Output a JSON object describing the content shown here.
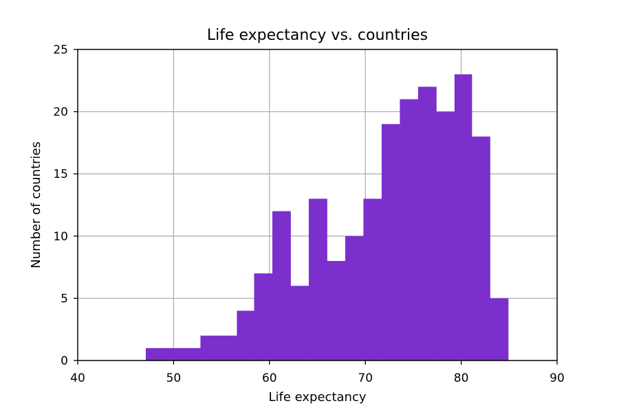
{
  "chart_data": {
    "type": "bar",
    "title": "Life expectancy vs. countries",
    "xlabel": "Life expectancy",
    "ylabel": "Number of countries",
    "xlim": [
      40,
      90
    ],
    "ylim": [
      0,
      25
    ],
    "xticks": [
      40,
      50,
      60,
      70,
      80,
      90
    ],
    "yticks": [
      0,
      5,
      10,
      15,
      20,
      25
    ],
    "grid": true,
    "bar_color": "#7b2fcc",
    "grid_color": "#b0b0b0",
    "bins": [
      {
        "x0": 47.1,
        "x1": 49.0,
        "value": 1
      },
      {
        "x0": 49.0,
        "x1": 50.9,
        "value": 1
      },
      {
        "x0": 50.9,
        "x1": 52.8,
        "value": 1
      },
      {
        "x0": 52.8,
        "x1": 54.7,
        "value": 2
      },
      {
        "x0": 54.7,
        "x1": 56.6,
        "value": 2
      },
      {
        "x0": 56.6,
        "x1": 58.4,
        "value": 4
      },
      {
        "x0": 58.4,
        "x1": 60.3,
        "value": 7
      },
      {
        "x0": 60.3,
        "x1": 62.2,
        "value": 12
      },
      {
        "x0": 62.2,
        "x1": 64.1,
        "value": 6
      },
      {
        "x0": 64.1,
        "x1": 66.0,
        "value": 13
      },
      {
        "x0": 66.0,
        "x1": 67.9,
        "value": 8
      },
      {
        "x0": 67.9,
        "x1": 69.8,
        "value": 10
      },
      {
        "x0": 69.8,
        "x1": 71.7,
        "value": 13
      },
      {
        "x0": 71.7,
        "x1": 73.6,
        "value": 19
      },
      {
        "x0": 73.6,
        "x1": 75.5,
        "value": 21
      },
      {
        "x0": 75.5,
        "x1": 77.4,
        "value": 22
      },
      {
        "x0": 77.4,
        "x1": 79.3,
        "value": 20
      },
      {
        "x0": 79.3,
        "x1": 81.1,
        "value": 23
      },
      {
        "x0": 81.1,
        "x1": 83.0,
        "value": 18
      },
      {
        "x0": 83.0,
        "x1": 84.9,
        "value": 5
      }
    ]
  }
}
